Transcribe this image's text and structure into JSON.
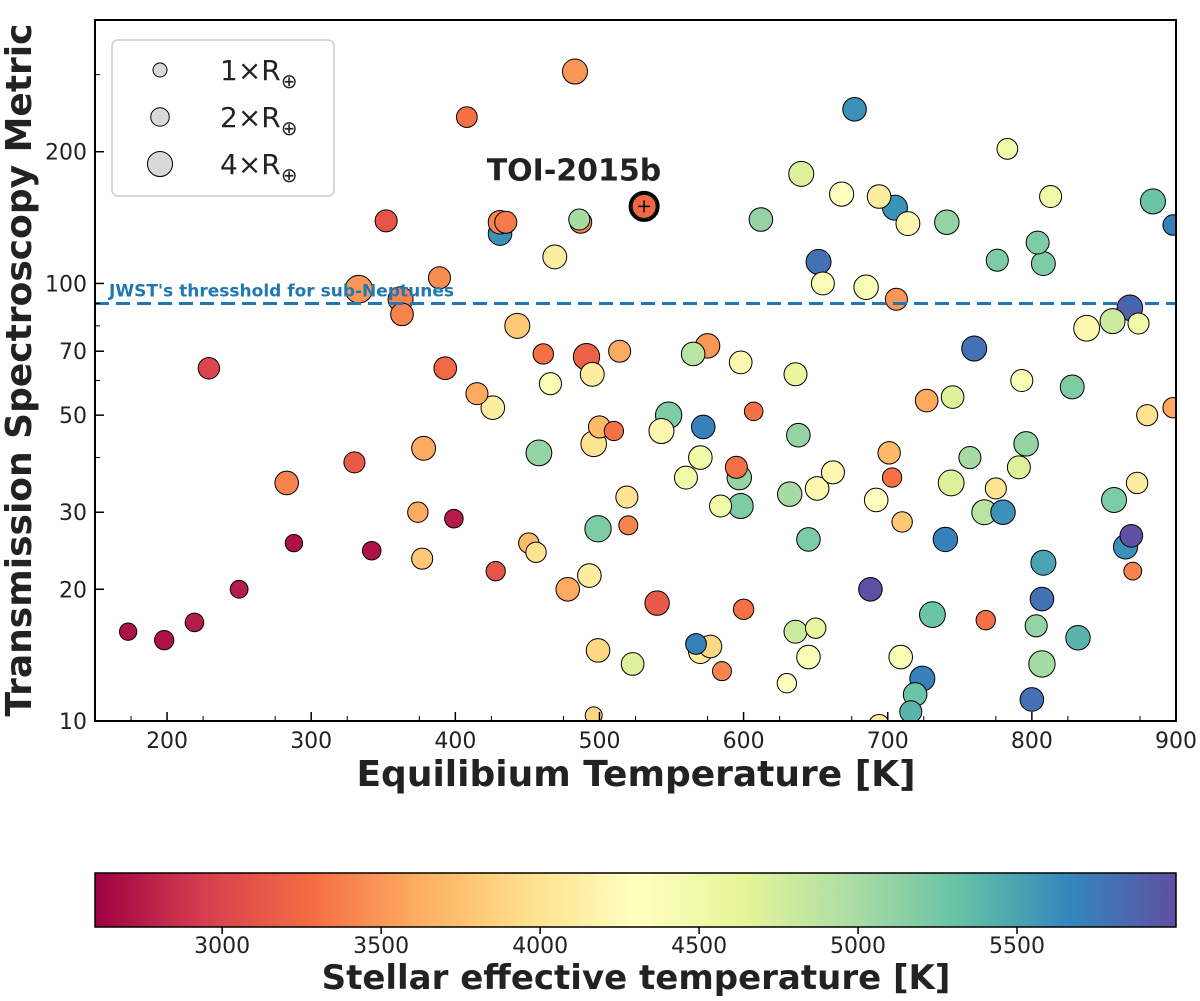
{
  "chart_data": {
    "type": "scatter",
    "xlabel": "Equilibium Temperature [K]",
    "ylabel": "Transmission Spectroscopy Metric",
    "xlim": [
      150,
      900
    ],
    "ylim": [
      10,
      400
    ],
    "yscale": "log",
    "x_ticks": [
      {
        "value": 200,
        "label": "200"
      },
      {
        "value": 300,
        "label": "300"
      },
      {
        "value": 400,
        "label": "400"
      },
      {
        "value": 500,
        "label": "500"
      },
      {
        "value": 600,
        "label": "600"
      },
      {
        "value": 700,
        "label": "700"
      },
      {
        "value": 800,
        "label": "800"
      },
      {
        "value": 900,
        "label": "900"
      }
    ],
    "y_ticks": [
      {
        "value": 10,
        "label": "10"
      },
      {
        "value": 20,
        "label": "20"
      },
      {
        "value": 30,
        "label": "30"
      },
      {
        "value": 50,
        "label": "50"
      },
      {
        "value": 70,
        "label": "70"
      },
      {
        "value": 100,
        "label": "100"
      },
      {
        "value": 200,
        "label": "200"
      }
    ],
    "colorbar": {
      "label": "Stellar effective temperature [K]",
      "range": [
        2600,
        6000
      ],
      "ticks": [
        {
          "value": 3000,
          "label": "3000"
        },
        {
          "value": 3500,
          "label": "3500"
        },
        {
          "value": 4000,
          "label": "4000"
        },
        {
          "value": 4500,
          "label": "4500"
        },
        {
          "value": 5000,
          "label": "5000"
        },
        {
          "value": 5500,
          "label": "5500"
        }
      ],
      "colormap": "Spectral",
      "stops": [
        "#9e0142",
        "#d53e4f",
        "#f46d43",
        "#fdae61",
        "#fee08b",
        "#ffffbf",
        "#e6f598",
        "#abdda4",
        "#66c2a5",
        "#3288bd",
        "#5e4fa2"
      ]
    },
    "threshold": {
      "value": 90,
      "label": "JWST's thresshold for sub-Neptunes",
      "color": "#1f77b4"
    },
    "legend": {
      "position": "top-left",
      "entries": [
        {
          "label": "1×R",
          "radius": 1
        },
        {
          "label": "2×R",
          "radius": 2
        },
        {
          "label": "4×R",
          "radius": 4
        }
      ],
      "earth_symbol": "⊕"
    },
    "highlight": {
      "label": "TOI-2015b",
      "x": 531,
      "y": 150,
      "teff": 3250,
      "radius": 3
    },
    "points": [
      [
        173,
        16,
        2700,
        1.7
      ],
      [
        198,
        15.3,
        2700,
        2.2
      ],
      [
        219,
        16.8,
        2750,
        2
      ],
      [
        229,
        64,
        3000,
        2.8
      ],
      [
        250,
        20,
        2750,
        1.8
      ],
      [
        288,
        25.5,
        2700,
        1.7
      ],
      [
        283,
        35,
        3400,
        3.5
      ],
      [
        330,
        39,
        3150,
        2.7
      ],
      [
        333,
        97,
        3500,
        5
      ],
      [
        342,
        24.5,
        2700,
        2
      ],
      [
        352,
        139,
        3100,
        3
      ],
      [
        362,
        92,
        3400,
        4
      ],
      [
        363,
        85,
        3400,
        3.2
      ],
      [
        374,
        30,
        3600,
        2.5
      ],
      [
        377,
        23.5,
        3800,
        2.7
      ],
      [
        378,
        42,
        3600,
        3.6
      ],
      [
        389,
        103,
        3450,
        3
      ],
      [
        393,
        64,
        3250,
        3.2
      ],
      [
        399,
        29,
        2750,
        2
      ],
      [
        408,
        240,
        3300,
        2.6
      ],
      [
        415,
        56,
        3600,
        3
      ],
      [
        426,
        52,
        4100,
        3.5
      ],
      [
        428,
        22,
        3100,
        2.2
      ],
      [
        431,
        130,
        5600,
        3.5
      ],
      [
        431,
        138,
        3400,
        3.5
      ],
      [
        435,
        138,
        3350,
        3
      ],
      [
        443,
        80,
        3800,
        4
      ],
      [
        451,
        25.5,
        3700,
        2.5
      ],
      [
        456,
        24.3,
        4000,
        2.5
      ],
      [
        458,
        41,
        5100,
        4.3
      ],
      [
        461,
        69,
        3300,
        2.5
      ],
      [
        466,
        59,
        4400,
        3
      ],
      [
        469,
        115,
        4100,
        3.6
      ],
      [
        478,
        20,
        3600,
        3.5
      ],
      [
        483,
        305,
        3500,
        4
      ],
      [
        486,
        140,
        5000,
        2.7
      ],
      [
        487,
        138,
        3400,
        3
      ],
      [
        491,
        68,
        3200,
        4.5
      ],
      [
        493,
        21.5,
        4100,
        3.5
      ],
      [
        495,
        62,
        4100,
        3.6
      ],
      [
        496,
        43,
        4000,
        4.2
      ],
      [
        499,
        27.5,
        5200,
        4.5
      ],
      [
        499,
        14.5,
        3900,
        3.5
      ],
      [
        500,
        47,
        3700,
        3
      ],
      [
        510,
        46,
        3300,
        2.2
      ],
      [
        514,
        70,
        3600,
        3
      ],
      [
        519,
        32.5,
        4000,
        3
      ],
      [
        520,
        28,
        3400,
        2.1
      ],
      [
        523,
        13.5,
        4700,
        3.2
      ],
      [
        540,
        18.6,
        3150,
        3.8
      ],
      [
        543,
        46,
        4200,
        4
      ],
      [
        548,
        50,
        5200,
        4.5
      ],
      [
        565,
        69,
        4900,
        3.5
      ],
      [
        560,
        36,
        4500,
        3.3
      ],
      [
        567,
        15,
        5700,
        2.6
      ],
      [
        570,
        14.4,
        4100,
        3.5
      ],
      [
        572,
        47,
        5700,
        3.5
      ],
      [
        570,
        40,
        4500,
        3.5
      ],
      [
        575,
        72,
        3500,
        3.8
      ],
      [
        577,
        14.8,
        3900,
        3.2
      ],
      [
        585,
        13,
        3400,
        2.1
      ],
      [
        584,
        31,
        4500,
        3
      ],
      [
        595,
        38,
        3300,
        3
      ],
      [
        598,
        31,
        5200,
        4
      ],
      [
        597,
        36,
        5100,
        3.8
      ],
      [
        598,
        66,
        4200,
        3.2
      ],
      [
        600,
        18,
        3300,
        2.5
      ],
      [
        607,
        51,
        3300,
        2
      ],
      [
        612,
        140,
        5100,
        3.5
      ],
      [
        636,
        62,
        4600,
        3.3
      ],
      [
        638,
        45,
        5100,
        3.5
      ],
      [
        632,
        33,
        5000,
        3.8
      ],
      [
        636,
        16,
        4800,
        3.3
      ],
      [
        630,
        12.2,
        4300,
        2.2
      ],
      [
        640,
        178,
        4700,
        4
      ],
      [
        645,
        26,
        5200,
        3.5
      ],
      [
        645,
        14,
        4400,
        3.5
      ],
      [
        651,
        34,
        4200,
        3.5
      ],
      [
        650,
        16.3,
        4600,
        2.5
      ],
      [
        652,
        112,
        5800,
        4
      ],
      [
        655,
        100,
        4400,
        3.3
      ],
      [
        662,
        37,
        4200,
        3.3
      ],
      [
        668,
        160,
        4300,
        3.7
      ],
      [
        677,
        250,
        5600,
        3.5
      ],
      [
        685,
        98,
        4400,
        3.8
      ],
      [
        688,
        20,
        6000,
        3.5
      ],
      [
        692,
        32,
        4300,
        3.5
      ],
      [
        694,
        158,
        4100,
        3.5
      ],
      [
        701,
        41,
        3700,
        3.1
      ],
      [
        703,
        36,
        3300,
        2.2
      ],
      [
        710,
        28.5,
        3800,
        2.5
      ],
      [
        709,
        14,
        4400,
        3.5
      ],
      [
        706,
        92,
        3500,
        3
      ],
      [
        714,
        137,
        4200,
        3.6
      ],
      [
        705,
        149,
        5600,
        4
      ],
      [
        719,
        11.5,
        5300,
        3.5
      ],
      [
        724,
        12.5,
        5700,
        4
      ],
      [
        727,
        54,
        3600,
        3.2
      ],
      [
        731,
        17.5,
        5300,
        4.3
      ],
      [
        740,
        26,
        5700,
        3.8
      ],
      [
        741,
        138,
        5100,
        3.8
      ],
      [
        744,
        35,
        4700,
        4.3
      ],
      [
        745,
        55,
        4700,
        3.2
      ],
      [
        760,
        71,
        5800,
        4
      ],
      [
        757,
        40,
        5000,
        3
      ],
      [
        768,
        17,
        3300,
        2.2
      ],
      [
        767,
        30,
        4900,
        4
      ],
      [
        776,
        113,
        5200,
        3
      ],
      [
        775,
        34,
        4000,
        2.7
      ],
      [
        780,
        30,
        5600,
        3.8
      ],
      [
        783,
        203,
        4500,
        2.6
      ],
      [
        791,
        38,
        4700,
        3.3
      ],
      [
        793,
        60,
        4400,
        3
      ],
      [
        796,
        43,
        5100,
        3.8
      ],
      [
        804,
        124,
        5200,
        3.3
      ],
      [
        807,
        13.5,
        5000,
        4.5
      ],
      [
        808,
        23,
        5500,
        4
      ],
      [
        807,
        19,
        5800,
        3.5
      ],
      [
        808,
        111,
        5200,
        3.6
      ],
      [
        803,
        16.5,
        5100,
        3
      ],
      [
        800,
        11.2,
        5800,
        3.5
      ],
      [
        813,
        158,
        4500,
        3
      ],
      [
        828,
        58,
        5200,
        3.6
      ],
      [
        832,
        15.5,
        5400,
        3.8
      ],
      [
        838,
        79,
        4200,
        4.3
      ],
      [
        856,
        82,
        4800,
        4
      ],
      [
        857,
        32,
        5200,
        4
      ],
      [
        865,
        25,
        5600,
        3.7
      ],
      [
        868,
        88,
        5900,
        4.2
      ],
      [
        869,
        26.5,
        6000,
        3.2
      ],
      [
        870,
        22,
        3400,
        1.8
      ],
      [
        873,
        35,
        4100,
        2.8
      ],
      [
        874,
        81,
        4500,
        2.7
      ],
      [
        884,
        154,
        5300,
        4
      ],
      [
        898,
        136,
        5700,
        2.5
      ],
      [
        898,
        52,
        3600,
        2.5
      ],
      [
        880,
        50,
        4000,
        2.7
      ],
      [
        496,
        10.3,
        3900,
        1.6
      ],
      [
        694,
        9.8,
        4100,
        2.6
      ],
      [
        716,
        10.5,
        5400,
        3
      ]
    ]
  }
}
